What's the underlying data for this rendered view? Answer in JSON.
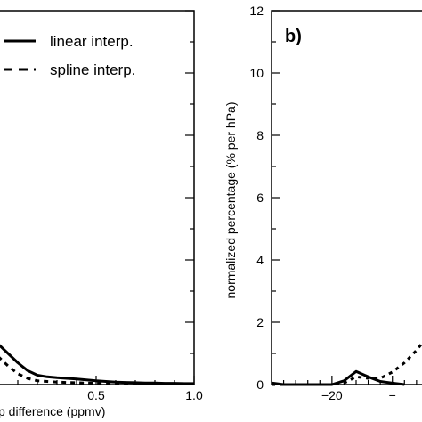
{
  "chart_data": [
    {
      "panel": "a",
      "type": "line",
      "xlabel": "p difference (ppmv)",
      "ylabel": "",
      "xlim": [
        0.0,
        1.0
      ],
      "ylim": [
        0,
        12
      ],
      "xticks": [
        "0.5",
        "1.0"
      ],
      "legend_position": "top-right",
      "series": [
        {
          "name": "linear interp.",
          "style": "solid",
          "x": [
            0.0,
            0.05,
            0.1,
            0.15,
            0.2,
            0.25,
            0.3,
            0.35,
            0.4,
            0.45,
            0.5,
            0.55,
            0.6,
            0.65,
            0.7,
            0.75,
            0.8,
            0.85,
            0.9,
            0.95,
            1.0
          ],
          "y": [
            1.3,
            1.0,
            0.7,
            0.45,
            0.3,
            0.25,
            0.22,
            0.2,
            0.18,
            0.15,
            0.12,
            0.1,
            0.08,
            0.07,
            0.06,
            0.05,
            0.05,
            0.04,
            0.04,
            0.03,
            0.03
          ]
        },
        {
          "name": "spline interp.",
          "style": "dashed",
          "x": [
            0.0,
            0.05,
            0.1,
            0.15,
            0.2,
            0.25,
            0.3,
            0.35,
            0.4,
            0.45,
            0.5,
            0.55,
            0.6,
            0.65,
            0.7,
            0.75,
            0.8,
            0.85,
            0.9,
            0.95,
            1.0
          ],
          "y": [
            0.9,
            0.6,
            0.35,
            0.2,
            0.12,
            0.1,
            0.08,
            0.07,
            0.06,
            0.05,
            0.04,
            0.04,
            0.03,
            0.03,
            0.03,
            0.02,
            0.02,
            0.02,
            0.02,
            0.02,
            0.02
          ]
        }
      ]
    },
    {
      "panel": "b",
      "type": "line",
      "panel_label": "b)",
      "xlabel": "",
      "ylabel": "normalized percentage (% per hPa)",
      "xlim": [
        -30,
        -2
      ],
      "ylim": [
        0,
        12
      ],
      "xticks": [
        "−20",
        "−"
      ],
      "yticks": [
        "0",
        "2",
        "4",
        "6",
        "8",
        "10",
        "12"
      ],
      "series": [
        {
          "name": "linear interp.",
          "style": "solid",
          "x": [
            -30,
            -28,
            -26,
            -24,
            -22,
            -20,
            -18,
            -16,
            -14,
            -12,
            -10,
            -8
          ],
          "y": [
            0.05,
            0.0,
            0.0,
            0.0,
            0.0,
            0.0,
            0.12,
            0.42,
            0.25,
            0.1,
            0.05,
            0.0
          ]
        },
        {
          "name": "spline interp.",
          "style": "dashed",
          "x": [
            -30,
            -28,
            -26,
            -24,
            -22,
            -20,
            -18,
            -16,
            -14,
            -12,
            -10,
            -8,
            -6,
            -4,
            -2
          ],
          "y": [
            0.0,
            0.0,
            0.0,
            0.0,
            0.0,
            0.0,
            0.05,
            0.25,
            0.2,
            0.2,
            0.4,
            0.7,
            1.1,
            1.6,
            2.2
          ]
        }
      ]
    }
  ]
}
